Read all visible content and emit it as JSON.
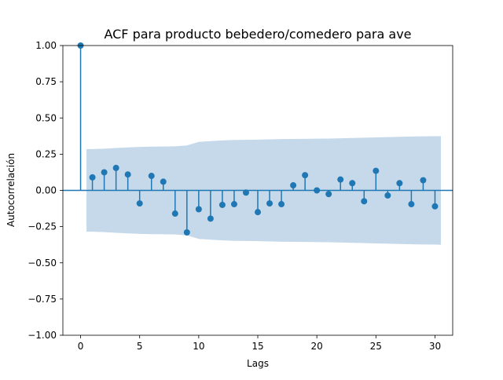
{
  "chart_data": {
    "type": "stem",
    "title": "ACF para producto bebedero/comedero para ave",
    "xlabel": "Lags",
    "ylabel": "Autocorrelación",
    "xlim": [
      -1.5,
      31.5
    ],
    "ylim": [
      -1.0,
      1.0
    ],
    "xticks": [
      0,
      5,
      10,
      15,
      20,
      25,
      30
    ],
    "xtick_labels": [
      "0",
      "5",
      "10",
      "15",
      "20",
      "25",
      "30"
    ],
    "yticks": [
      -1.0,
      -0.75,
      -0.5,
      -0.25,
      0.0,
      0.25,
      0.5,
      0.75,
      1.0
    ],
    "ytick_labels": [
      "−1.00",
      "−0.75",
      "−0.50",
      "−0.25",
      "0.00",
      "0.25",
      "0.50",
      "0.75",
      "1.00"
    ],
    "lags": [
      0,
      1,
      2,
      3,
      4,
      5,
      6,
      7,
      8,
      9,
      10,
      11,
      12,
      13,
      14,
      15,
      16,
      17,
      18,
      19,
      20,
      21,
      22,
      23,
      24,
      25,
      26,
      27,
      28,
      29,
      30
    ],
    "values": [
      1.0,
      0.09,
      0.125,
      0.155,
      0.11,
      -0.09,
      0.1,
      0.06,
      -0.16,
      -0.29,
      -0.13,
      -0.195,
      -0.1,
      -0.095,
      -0.015,
      -0.15,
      -0.09,
      -0.095,
      0.035,
      0.105,
      0.0,
      -0.025,
      0.075,
      0.05,
      -0.075,
      0.135,
      -0.035,
      0.05,
      -0.095,
      0.07,
      -0.11
    ],
    "confidence_band": {
      "lags": [
        0.5,
        1,
        2,
        3,
        4,
        5,
        6,
        7,
        8,
        9,
        10,
        11,
        12,
        13,
        14,
        15,
        16,
        17,
        18,
        19,
        20,
        21,
        22,
        23,
        24,
        25,
        26,
        27,
        28,
        29,
        30,
        30.5
      ],
      "upper": [
        0.285,
        0.285,
        0.288,
        0.293,
        0.297,
        0.3,
        0.302,
        0.303,
        0.304,
        0.31,
        0.335,
        0.34,
        0.345,
        0.348,
        0.349,
        0.35,
        0.352,
        0.354,
        0.355,
        0.356,
        0.357,
        0.358,
        0.36,
        0.362,
        0.364,
        0.366,
        0.368,
        0.37,
        0.372,
        0.373,
        0.374,
        0.375
      ]
    },
    "colors": {
      "stem": "#1f77b4",
      "band": "#c5d9ea",
      "zero_line": "#1f77b4"
    },
    "grid": false,
    "legend": false
  }
}
